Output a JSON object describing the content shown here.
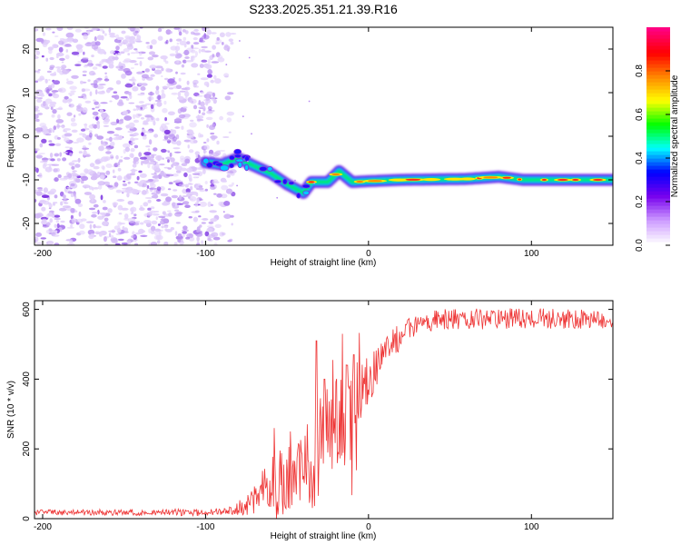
{
  "figure_title": "S233.2025.351.21.39.R16",
  "chart_data": [
    {
      "type": "heatmap",
      "title": "S233.2025.351.21.39.R16",
      "xlabel": "Height of straight line (km)",
      "ylabel": "Frequency (Hz)",
      "xlim": [
        -205,
        150
      ],
      "ylim": [
        -25,
        25
      ],
      "x_ticks": [
        -200,
        -100,
        0,
        100
      ],
      "y_ticks": [
        -20,
        -10,
        0,
        10,
        20
      ],
      "noise_region": {
        "x_from": -205,
        "x_to": -83,
        "y_from": -25,
        "y_to": 25
      },
      "ridge": [
        {
          "x": -100,
          "y": -6
        },
        {
          "x": -90,
          "y": -6.5
        },
        {
          "x": -80,
          "y": -5
        },
        {
          "x": -72,
          "y": -6.5
        },
        {
          "x": -60,
          "y": -8.5
        },
        {
          "x": -50,
          "y": -11
        },
        {
          "x": -40,
          "y": -13
        },
        {
          "x": -35,
          "y": -10.5
        },
        {
          "x": -25,
          "y": -10.5
        },
        {
          "x": -18,
          "y": -8
        },
        {
          "x": -10,
          "y": -10.5
        },
        {
          "x": 0,
          "y": -10.3
        },
        {
          "x": 20,
          "y": -10
        },
        {
          "x": 60,
          "y": -9.8
        },
        {
          "x": 80,
          "y": -9.3
        },
        {
          "x": 95,
          "y": -10
        },
        {
          "x": 150,
          "y": -10
        }
      ],
      "colorbar": {
        "label": "Normalized spectral amplitude",
        "range": [
          0,
          1
        ],
        "ticks": [
          "0.0",
          "0.2",
          "0.4",
          "0.6",
          "0.8"
        ],
        "colors": [
          "#ffffff",
          "#cc99ff",
          "#7700ee",
          "#0000ff",
          "#00ffff",
          "#00ff00",
          "#ffff00",
          "#ff8800",
          "#ff0000",
          "#ff0080"
        ]
      }
    },
    {
      "type": "line",
      "xlabel": "Height of straight line (km)",
      "ylabel": "SNR (10 * v/v)",
      "xlim": [
        -205,
        150
      ],
      "ylim": [
        0,
        625
      ],
      "x_ticks": [
        -200,
        -100,
        0,
        100
      ],
      "y_ticks": [
        0,
        200,
        400,
        600
      ],
      "series": [
        {
          "name": "SNR",
          "color": "#ee3333",
          "envelope": [
            {
              "x": -205,
              "base": 18,
              "amp": 8
            },
            {
              "x": -100,
              "base": 18,
              "amp": 10
            },
            {
              "x": -85,
              "base": 22,
              "amp": 12
            },
            {
              "x": -75,
              "base": 40,
              "amp": 30
            },
            {
              "x": -65,
              "base": 70,
              "amp": 70
            },
            {
              "x": -55,
              "base": 90,
              "amp": 110
            },
            {
              "x": -45,
              "base": 120,
              "amp": 90
            },
            {
              "x": -38,
              "base": 150,
              "amp": 120
            },
            {
              "x": -30,
              "base": 230,
              "amp": 200
            },
            {
              "x": -25,
              "base": 250,
              "amp": 120
            },
            {
              "x": -20,
              "base": 280,
              "amp": 140
            },
            {
              "x": -15,
              "base": 300,
              "amp": 140
            },
            {
              "x": -10,
              "base": 250,
              "amp": 220
            },
            {
              "x": -5,
              "base": 340,
              "amp": 120
            },
            {
              "x": 0,
              "base": 400,
              "amp": 70
            },
            {
              "x": 10,
              "base": 470,
              "amp": 50
            },
            {
              "x": 20,
              "base": 525,
              "amp": 40
            },
            {
              "x": 30,
              "base": 555,
              "amp": 35
            },
            {
              "x": 40,
              "base": 570,
              "amp": 30
            },
            {
              "x": 100,
              "base": 575,
              "amp": 30
            },
            {
              "x": 150,
              "base": 570,
              "amp": 28
            }
          ],
          "spikes": [
            {
              "x": -32,
              "y": 510
            },
            {
              "x": -27,
              "y": 400
            },
            {
              "x": -22,
              "y": 455
            },
            {
              "x": -16,
              "y": 530
            },
            {
              "x": -13,
              "y": 440
            },
            {
              "x": -9,
              "y": 470
            },
            {
              "x": -58,
              "y": 260
            },
            {
              "x": -48,
              "y": 250
            }
          ]
        }
      ]
    }
  ]
}
